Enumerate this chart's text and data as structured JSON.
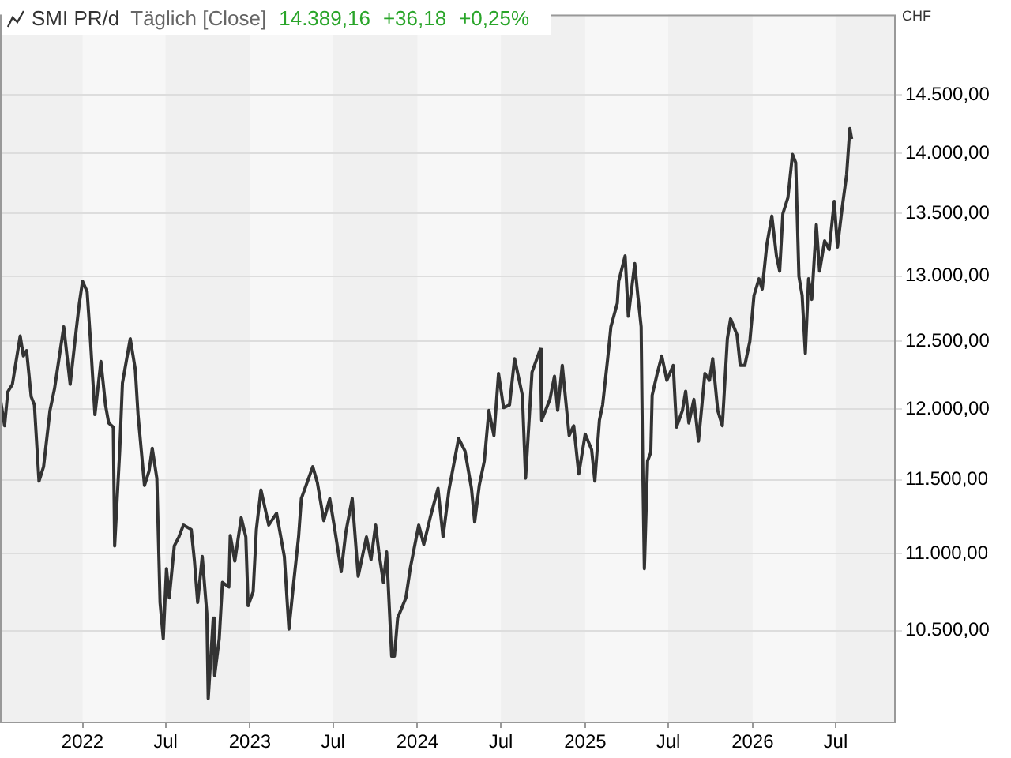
{
  "chart_data": {
    "type": "line",
    "title": "SMI PR/d",
    "subtitle": "Täglich [Close]",
    "annotations": [
      "14.389,16",
      "+36,18",
      "+0,25%"
    ],
    "ylabel": "CHF",
    "log": "y",
    "grid": "y",
    "legend": false,
    "marker": "none",
    "line_style": "solid",
    "xlim": [
      "2021-07-05",
      "2026-11-09"
    ],
    "xticks": [
      {
        "value": "2022-01-01",
        "label": "2022"
      },
      {
        "value": "2022-07-01",
        "label": "Jul"
      },
      {
        "value": "2023-01-01",
        "label": "2023"
      },
      {
        "value": "2023-07-01",
        "label": "Jul"
      },
      {
        "value": "2024-01-01",
        "label": "2024"
      },
      {
        "value": "2024-07-01",
        "label": "Jul"
      },
      {
        "value": "2025-01-01",
        "label": "2025"
      },
      {
        "value": "2025-07-01",
        "label": "Jul"
      },
      {
        "value": "2026-01-01",
        "label": "2026"
      },
      {
        "value": "2026-07-01",
        "label": "Jul"
      }
    ],
    "ylim": [
      9940,
      15220
    ],
    "yticks": [
      {
        "value": 10500,
        "label": "10.500,00"
      },
      {
        "value": 11000,
        "label": "11.000,00"
      },
      {
        "value": 11500,
        "label": "11.500,00"
      },
      {
        "value": 12000,
        "label": "12.000,00"
      },
      {
        "value": 12500,
        "label": "12.500,00"
      },
      {
        "value": 13000,
        "label": "13.000,00"
      },
      {
        "value": 13500,
        "label": "13.500,00"
      },
      {
        "value": 14000,
        "label": "14.000,00"
      },
      {
        "value": 14500,
        "label": "14.500,00"
      }
    ],
    "bands": [
      {
        "axis": "x",
        "from": "2021-07-05",
        "to": "2022-01-01",
        "color": "#f0f0f0"
      },
      {
        "axis": "x",
        "from": "2022-07-01",
        "to": "2023-01-01",
        "color": "#f0f0f0"
      },
      {
        "axis": "x",
        "from": "2023-07-01",
        "to": "2024-01-01",
        "color": "#f0f0f0"
      },
      {
        "axis": "x",
        "from": "2024-07-01",
        "to": "2025-01-01",
        "color": "#f0f0f0"
      },
      {
        "axis": "x",
        "from": "2025-07-01",
        "to": "2026-01-01",
        "color": "#f0f0f0"
      },
      {
        "axis": "x",
        "from": "2026-07-01",
        "to": "2026-11-09",
        "color": "#f0f0f0"
      }
    ],
    "x": [
      "2021-07-05",
      "2021-07-15",
      "2021-07-22",
      "2021-08-01",
      "2021-08-18",
      "2021-08-25",
      "2021-09-01",
      "2021-09-11",
      "2021-09-18",
      "2021-09-28",
      "2021-10-08",
      "2021-10-22",
      "2021-11-01",
      "2021-11-21",
      "2021-12-05",
      "2021-12-18",
      "2021-12-25",
      "2022-01-01",
      "2022-01-11",
      "2022-01-18",
      "2022-01-28",
      "2022-02-10",
      "2022-02-20",
      "2022-02-27",
      "2022-03-09",
      "2022-03-12",
      "2022-03-23",
      "2022-03-29",
      "2022-04-15",
      "2022-04-26",
      "2022-05-02",
      "2022-05-16",
      "2022-05-26",
      "2022-06-02",
      "2022-06-12",
      "2022-06-19",
      "2022-06-26",
      "2022-07-03",
      "2022-07-09",
      "2022-07-20",
      "2022-07-30",
      "2022-08-09",
      "2022-08-26",
      "2022-09-02",
      "2022-09-09",
      "2022-09-19",
      "2022-09-29",
      "2022-10-02",
      "2022-10-13",
      "2022-10-16",
      "2022-10-26",
      "2022-11-02",
      "2022-11-16",
      "2022-11-19",
      "2022-11-29",
      "2022-12-13",
      "2022-12-23",
      "2022-12-28",
      "2023-01-08",
      "2023-01-15",
      "2023-01-25",
      "2023-02-11",
      "2023-02-28",
      "2023-03-17",
      "2023-03-27",
      "2023-04-06",
      "2023-04-17",
      "2023-04-23",
      "2023-05-18",
      "2023-05-28",
      "2023-06-11",
      "2023-06-24",
      "2023-07-05",
      "2023-07-19",
      "2023-07-29",
      "2023-08-12",
      "2023-08-25",
      "2023-09-12",
      "2023-09-22",
      "2023-10-02",
      "2023-10-09",
      "2023-10-19",
      "2023-10-26",
      "2023-11-06",
      "2023-11-12",
      "2023-11-19",
      "2023-12-07",
      "2023-12-17",
      "2024-01-04",
      "2024-01-15",
      "2024-01-29",
      "2024-02-15",
      "2024-02-26",
      "2024-03-10",
      "2024-03-31",
      "2024-04-14",
      "2024-04-28",
      "2024-05-05",
      "2024-05-15",
      "2024-05-26",
      "2024-06-05",
      "2024-06-16",
      "2024-06-26",
      "2024-07-07",
      "2024-07-20",
      "2024-07-31",
      "2024-08-17",
      "2024-08-24",
      "2024-09-07",
      "2024-09-25",
      "2024-09-28",
      "2024-10-16",
      "2024-10-26",
      "2024-11-02",
      "2024-11-12",
      "2024-11-27",
      "2024-12-07",
      "2024-12-18",
      "2025-01-01",
      "2025-01-15",
      "2025-01-22",
      "2025-02-01",
      "2025-02-08",
      "2025-02-19",
      "2025-02-26",
      "2025-03-12",
      "2025-03-15",
      "2025-03-29",
      "2025-04-05",
      "2025-04-19",
      "2025-04-26",
      "2025-05-03",
      "2025-05-06",
      "2025-05-10",
      "2025-05-17",
      "2025-05-24",
      "2025-05-27",
      "2025-06-07",
      "2025-06-17",
      "2025-06-28",
      "2025-07-12",
      "2025-07-19",
      "2025-08-01",
      "2025-08-08",
      "2025-08-15",
      "2025-08-26",
      "2025-09-05",
      "2025-09-19",
      "2025-09-29",
      "2025-10-06",
      "2025-10-17",
      "2025-10-27",
      "2025-11-07",
      "2025-11-14",
      "2025-11-28",
      "2025-12-05",
      "2025-12-15",
      "2025-12-26",
      "2026-01-04",
      "2026-01-15",
      "2026-01-22",
      "2026-02-01",
      "2026-02-12",
      "2026-02-22",
      "2026-03-01",
      "2026-03-08",
      "2026-03-19",
      "2026-03-29",
      "2026-04-05",
      "2026-04-12",
      "2026-04-19",
      "2026-04-26",
      "2026-05-03",
      "2026-05-10",
      "2026-05-20",
      "2026-05-27",
      "2026-06-07",
      "2026-06-17",
      "2026-06-28",
      "2026-07-05",
      "2026-07-15",
      "2026-07-25",
      "2026-08-01",
      "2026-08-05"
    ],
    "series": [
      {
        "color": "#333333",
        "values": [
          12090,
          11880,
          12125,
          12180,
          12540,
          12390,
          12430,
          12090,
          12030,
          11490,
          11590,
          11990,
          12150,
          12610,
          12180,
          12580,
          12790,
          12960,
          12880,
          12520,
          11960,
          12350,
          12030,
          11900,
          11870,
          11050,
          11700,
          12190,
          12520,
          12290,
          11960,
          11460,
          11560,
          11720,
          11510,
          10680,
          10450,
          10900,
          10710,
          11050,
          11110,
          11190,
          11160,
          10950,
          10680,
          10980,
          10610,
          10080,
          10580,
          10220,
          10450,
          10810,
          10780,
          11120,
          10950,
          11240,
          11110,
          10660,
          10750,
          11160,
          11430,
          11190,
          11270,
          10980,
          10510,
          10800,
          11110,
          11370,
          11590,
          11480,
          11220,
          11370,
          11160,
          10880,
          11140,
          11370,
          10850,
          11110,
          10960,
          11190,
          11010,
          10810,
          11010,
          10340,
          10340,
          10580,
          10710,
          10910,
          11190,
          11060,
          11240,
          11440,
          11110,
          11430,
          11790,
          11700,
          11440,
          11210,
          11460,
          11630,
          11990,
          11810,
          12260,
          12010,
          12030,
          12370,
          12100,
          11510,
          12270,
          12440,
          11920,
          12070,
          12240,
          11990,
          12320,
          11810,
          11880,
          11540,
          11820,
          11710,
          11490,
          11920,
          12030,
          12370,
          12610,
          12790,
          12960,
          13160,
          12690,
          13100,
          12840,
          12610,
          11690,
          10900,
          11630,
          11690,
          12100,
          12260,
          12390,
          12210,
          12320,
          11870,
          11990,
          12130,
          11900,
          12070,
          11770,
          12260,
          12210,
          12370,
          11990,
          11880,
          12520,
          12670,
          12550,
          12320,
          12320,
          12500,
          12850,
          12980,
          12900,
          13250,
          13480,
          13160,
          13040,
          13500,
          13630,
          13990,
          13920,
          13000,
          12850,
          12410,
          12980,
          12820,
          13410,
          13040,
          13280,
          13210,
          13600,
          13230,
          13540,
          13820,
          14210,
          14120
        ]
      }
    ]
  }
}
